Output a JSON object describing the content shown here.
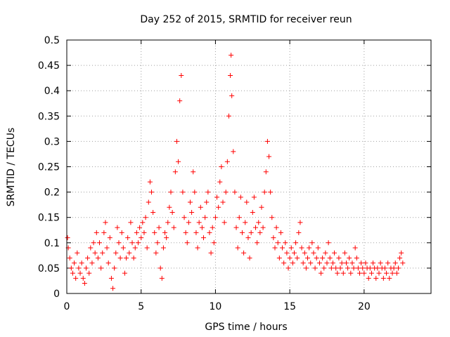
{
  "chart_data": {
    "type": "scatter",
    "title": "Day 252 of 2015, SRMTID for receiver reun",
    "xlabel": "GPS time / hours",
    "ylabel": "SRMTID / TECUs",
    "xlim": [
      0,
      24.5
    ],
    "ylim": [
      0,
      0.5
    ],
    "xticks": [
      0,
      5,
      10,
      15,
      20
    ],
    "xtick_labels": [
      "0",
      "5",
      "10",
      "15",
      "20"
    ],
    "yticks": [
      0,
      0.05,
      0.1,
      0.15,
      0.2,
      0.25,
      0.3,
      0.35,
      0.4,
      0.45,
      0.5
    ],
    "ytick_labels": [
      "0",
      "0.05",
      "0.1",
      "0.15",
      "0.2",
      "0.25",
      "0.3",
      "0.35",
      "0.4",
      "0.45",
      "0.5"
    ],
    "grid": true,
    "marker": "+",
    "color": "#ff0000",
    "series": [
      {
        "name": "SRMTID",
        "points": [
          [
            0.05,
            0.11
          ],
          [
            0.1,
            0.09
          ],
          [
            0.2,
            0.07
          ],
          [
            0.3,
            0.05
          ],
          [
            0.4,
            0.04
          ],
          [
            0.5,
            0.06
          ],
          [
            0.6,
            0.03
          ],
          [
            0.7,
            0.08
          ],
          [
            0.8,
            0.05
          ],
          [
            0.9,
            0.04
          ],
          [
            1.0,
            0.06
          ],
          [
            1.1,
            0.03
          ],
          [
            1.2,
            0.02
          ],
          [
            1.3,
            0.05
          ],
          [
            1.4,
            0.07
          ],
          [
            1.5,
            0.04
          ],
          [
            1.6,
            0.09
          ],
          [
            1.7,
            0.06
          ],
          [
            1.8,
            0.1
          ],
          [
            1.9,
            0.08
          ],
          [
            2.0,
            0.12
          ],
          [
            2.1,
            0.07
          ],
          [
            2.2,
            0.1
          ],
          [
            2.3,
            0.05
          ],
          [
            2.4,
            0.08
          ],
          [
            2.5,
            0.12
          ],
          [
            2.6,
            0.14
          ],
          [
            2.7,
            0.09
          ],
          [
            2.8,
            0.06
          ],
          [
            2.9,
            0.11
          ],
          [
            3.0,
            0.03
          ],
          [
            3.1,
            0.01
          ],
          [
            3.2,
            0.05
          ],
          [
            3.3,
            0.08
          ],
          [
            3.4,
            0.13
          ],
          [
            3.5,
            0.1
          ],
          [
            3.6,
            0.07
          ],
          [
            3.7,
            0.12
          ],
          [
            3.8,
            0.09
          ],
          [
            3.9,
            0.04
          ],
          [
            4.0,
            0.07
          ],
          [
            4.1,
            0.11
          ],
          [
            4.2,
            0.08
          ],
          [
            4.3,
            0.14
          ],
          [
            4.4,
            0.1
          ],
          [
            4.5,
            0.07
          ],
          [
            4.6,
            0.09
          ],
          [
            4.7,
            0.12
          ],
          [
            4.8,
            0.1
          ],
          [
            4.9,
            0.13
          ],
          [
            5.0,
            0.11
          ],
          [
            5.1,
            0.14
          ],
          [
            5.2,
            0.12
          ],
          [
            5.3,
            0.15
          ],
          [
            5.4,
            0.09
          ],
          [
            5.5,
            0.18
          ],
          [
            5.6,
            0.22
          ],
          [
            5.7,
            0.2
          ],
          [
            5.8,
            0.16
          ],
          [
            5.9,
            0.12
          ],
          [
            6.0,
            0.08
          ],
          [
            6.1,
            0.1
          ],
          [
            6.2,
            0.13
          ],
          [
            6.3,
            0.05
          ],
          [
            6.4,
            0.03
          ],
          [
            6.5,
            0.09
          ],
          [
            6.6,
            0.12
          ],
          [
            6.7,
            0.11
          ],
          [
            6.8,
            0.14
          ],
          [
            6.9,
            0.17
          ],
          [
            7.0,
            0.2
          ],
          [
            7.1,
            0.16
          ],
          [
            7.2,
            0.13
          ],
          [
            7.3,
            0.24
          ],
          [
            7.4,
            0.3
          ],
          [
            7.5,
            0.26
          ],
          [
            7.6,
            0.38
          ],
          [
            7.7,
            0.43
          ],
          [
            7.8,
            0.2
          ],
          [
            7.9,
            0.15
          ],
          [
            8.0,
            0.12
          ],
          [
            8.1,
            0.1
          ],
          [
            8.2,
            0.14
          ],
          [
            8.3,
            0.18
          ],
          [
            8.4,
            0.16
          ],
          [
            8.5,
            0.24
          ],
          [
            8.6,
            0.2
          ],
          [
            8.7,
            0.12
          ],
          [
            8.8,
            0.09
          ],
          [
            8.9,
            0.14
          ],
          [
            9.0,
            0.17
          ],
          [
            9.1,
            0.13
          ],
          [
            9.2,
            0.11
          ],
          [
            9.3,
            0.15
          ],
          [
            9.4,
            0.18
          ],
          [
            9.5,
            0.2
          ],
          [
            9.6,
            0.12
          ],
          [
            9.7,
            0.08
          ],
          [
            9.8,
            0.13
          ],
          [
            9.9,
            0.1
          ],
          [
            10.0,
            0.15
          ],
          [
            10.1,
            0.19
          ],
          [
            10.2,
            0.17
          ],
          [
            10.3,
            0.22
          ],
          [
            10.4,
            0.25
          ],
          [
            10.5,
            0.18
          ],
          [
            10.6,
            0.14
          ],
          [
            10.7,
            0.2
          ],
          [
            10.8,
            0.26
          ],
          [
            10.9,
            0.35
          ],
          [
            11.0,
            0.43
          ],
          [
            11.05,
            0.47
          ],
          [
            11.1,
            0.39
          ],
          [
            11.2,
            0.28
          ],
          [
            11.3,
            0.2
          ],
          [
            11.4,
            0.13
          ],
          [
            11.5,
            0.09
          ],
          [
            11.6,
            0.15
          ],
          [
            11.7,
            0.19
          ],
          [
            11.8,
            0.12
          ],
          [
            11.9,
            0.08
          ],
          [
            12.0,
            0.14
          ],
          [
            12.1,
            0.18
          ],
          [
            12.2,
            0.11
          ],
          [
            12.3,
            0.07
          ],
          [
            12.4,
            0.12
          ],
          [
            12.5,
            0.16
          ],
          [
            12.6,
            0.19
          ],
          [
            12.7,
            0.13
          ],
          [
            12.8,
            0.1
          ],
          [
            12.9,
            0.14
          ],
          [
            13.0,
            0.12
          ],
          [
            13.1,
            0.17
          ],
          [
            13.2,
            0.13
          ],
          [
            13.3,
            0.2
          ],
          [
            13.4,
            0.24
          ],
          [
            13.5,
            0.3
          ],
          [
            13.6,
            0.27
          ],
          [
            13.7,
            0.2
          ],
          [
            13.8,
            0.15
          ],
          [
            13.9,
            0.11
          ],
          [
            14.0,
            0.09
          ],
          [
            14.1,
            0.13
          ],
          [
            14.2,
            0.1
          ],
          [
            14.3,
            0.07
          ],
          [
            14.4,
            0.12
          ],
          [
            14.5,
            0.09
          ],
          [
            14.6,
            0.06
          ],
          [
            14.7,
            0.1
          ],
          [
            14.8,
            0.08
          ],
          [
            14.9,
            0.05
          ],
          [
            15.0,
            0.07
          ],
          [
            15.1,
            0.09
          ],
          [
            15.2,
            0.06
          ],
          [
            15.3,
            0.08
          ],
          [
            15.4,
            0.1
          ],
          [
            15.5,
            0.07
          ],
          [
            15.6,
            0.12
          ],
          [
            15.7,
            0.14
          ],
          [
            15.8,
            0.09
          ],
          [
            15.9,
            0.06
          ],
          [
            16.0,
            0.08
          ],
          [
            16.1,
            0.05
          ],
          [
            16.2,
            0.07
          ],
          [
            16.3,
            0.09
          ],
          [
            16.4,
            0.06
          ],
          [
            16.5,
            0.1
          ],
          [
            16.6,
            0.08
          ],
          [
            16.7,
            0.05
          ],
          [
            16.8,
            0.07
          ],
          [
            16.9,
            0.09
          ],
          [
            17.0,
            0.06
          ],
          [
            17.1,
            0.04
          ],
          [
            17.2,
            0.07
          ],
          [
            17.3,
            0.05
          ],
          [
            17.4,
            0.08
          ],
          [
            17.5,
            0.06
          ],
          [
            17.6,
            0.1
          ],
          [
            17.7,
            0.07
          ],
          [
            17.8,
            0.05
          ],
          [
            17.9,
            0.06
          ],
          [
            18.0,
            0.08
          ],
          [
            18.1,
            0.05
          ],
          [
            18.2,
            0.04
          ],
          [
            18.3,
            0.07
          ],
          [
            18.4,
            0.05
          ],
          [
            18.5,
            0.06
          ],
          [
            18.6,
            0.04
          ],
          [
            18.7,
            0.08
          ],
          [
            18.8,
            0.06
          ],
          [
            18.9,
            0.05
          ],
          [
            19.0,
            0.07
          ],
          [
            19.1,
            0.04
          ],
          [
            19.2,
            0.06
          ],
          [
            19.3,
            0.05
          ],
          [
            19.4,
            0.09
          ],
          [
            19.5,
            0.07
          ],
          [
            19.6,
            0.05
          ],
          [
            19.7,
            0.04
          ],
          [
            19.8,
            0.06
          ],
          [
            19.9,
            0.05
          ],
          [
            20.0,
            0.04
          ],
          [
            20.1,
            0.06
          ],
          [
            20.2,
            0.05
          ],
          [
            20.3,
            0.03
          ],
          [
            20.4,
            0.05
          ],
          [
            20.5,
            0.04
          ],
          [
            20.6,
            0.06
          ],
          [
            20.7,
            0.05
          ],
          [
            20.8,
            0.03
          ],
          [
            20.9,
            0.05
          ],
          [
            21.0,
            0.04
          ],
          [
            21.1,
            0.06
          ],
          [
            21.2,
            0.05
          ],
          [
            21.3,
            0.03
          ],
          [
            21.4,
            0.05
          ],
          [
            21.5,
            0.04
          ],
          [
            21.6,
            0.06
          ],
          [
            21.7,
            0.03
          ],
          [
            21.8,
            0.05
          ],
          [
            21.9,
            0.04
          ],
          [
            22.0,
            0.05
          ],
          [
            22.1,
            0.06
          ],
          [
            22.2,
            0.04
          ],
          [
            22.3,
            0.05
          ],
          [
            22.4,
            0.07
          ],
          [
            22.5,
            0.08
          ],
          [
            22.6,
            0.06
          ]
        ]
      }
    ]
  }
}
